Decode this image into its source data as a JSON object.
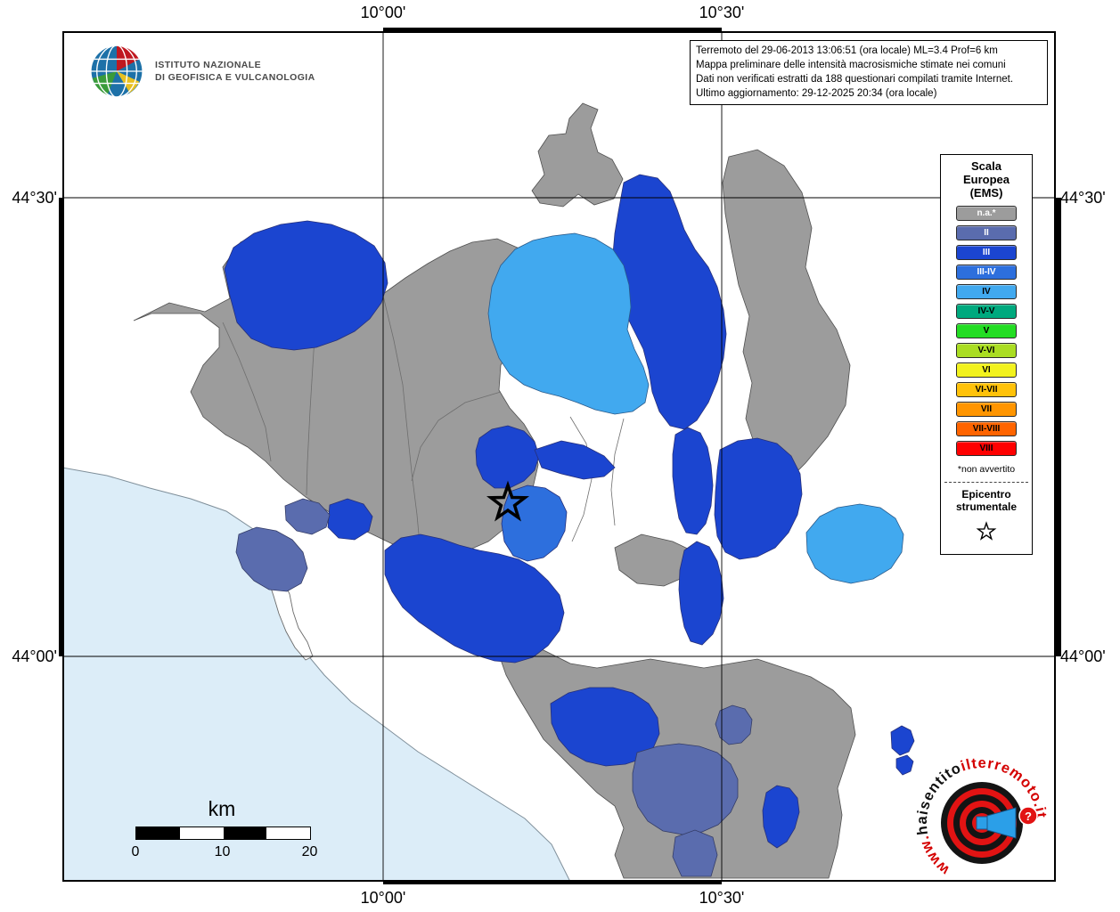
{
  "axes": {
    "lon_left": "10°00'",
    "lon_right": "10°30'",
    "lat_top": "44°30'",
    "lat_bottom": "44°00'"
  },
  "info_box": {
    "lines": [
      "Terremoto del 29-06-2013 13:06:51 (ora locale) ML=3.4 Prof=6 km",
      "Mappa preliminare delle intensità macrosismiche stimate nei comuni",
      "Dati non verificati estratti da 188 questionari compilati tramite Internet.",
      "Ultimo aggiornamento: 29-12-2025 20:34 (ora locale)"
    ]
  },
  "ingv": {
    "line1": "ISTITUTO NAZIONALE",
    "line2": "DI GEOFISICA E VULCANOLOGIA"
  },
  "legend": {
    "title_lines": [
      "Scala",
      "Europea",
      "(EMS)"
    ],
    "items": [
      {
        "label": "n.a.*",
        "key": "na",
        "dark_text": false
      },
      {
        "label": "II",
        "key": "II",
        "dark_text": false
      },
      {
        "label": "III",
        "key": "III",
        "dark_text": false
      },
      {
        "label": "III-IV",
        "key": "III-IV",
        "dark_text": false
      },
      {
        "label": "IV",
        "key": "IV",
        "dark_text": true
      },
      {
        "label": "IV-V",
        "key": "IV-V",
        "dark_text": true
      },
      {
        "label": "V",
        "key": "V",
        "dark_text": true
      },
      {
        "label": "V-VI",
        "key": "V-VI",
        "dark_text": true
      },
      {
        "label": "VI",
        "key": "VI",
        "dark_text": true
      },
      {
        "label": "VI-VII",
        "key": "VI-VII",
        "dark_text": true
      },
      {
        "label": "VII",
        "key": "VII",
        "dark_text": true
      },
      {
        "label": "VII-VIII",
        "key": "VII-VIII",
        "dark_text": true
      },
      {
        "label": "VIII",
        "key": "VIII",
        "dark_text": true
      }
    ],
    "footnote": "*non avvertito",
    "epicenter_line1": "Epicentro",
    "epicenter_line2": "strumentale"
  },
  "scalebar": {
    "unit": "km",
    "labels": [
      "0",
      "10",
      "20"
    ]
  },
  "palette": {
    "na": "#9c9c9c",
    "II": "#5a6cae",
    "III": "#1b45d0",
    "III-IV": "#2d6fdd",
    "IV": "#41a9ef",
    "IV-V": "#00a97e",
    "V": "#23dd23",
    "V-VI": "#aadd22",
    "VI": "#f2f21e",
    "VI-VII": "#ffc20a",
    "VII": "#ff9500",
    "VII-VIII": "#ff6400",
    "VIII": "#fe0000",
    "sea": "#dcedf8"
  },
  "watermark": {
    "prefix": "www.",
    "name": "haisentito",
    "suffix": "ilterremoto.it",
    "q": "?"
  }
}
